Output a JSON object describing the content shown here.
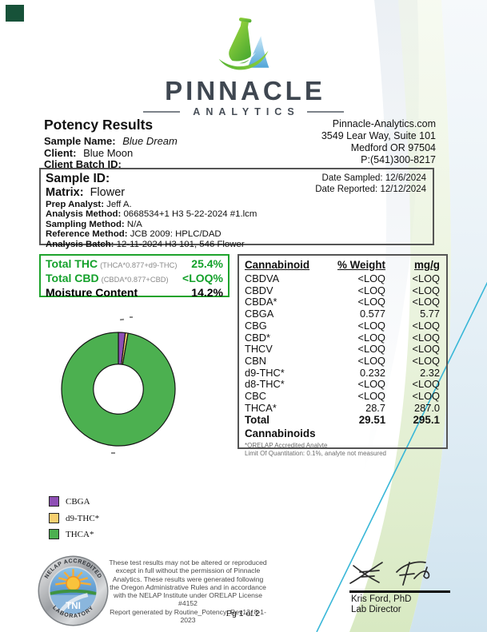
{
  "logo": {
    "brand": "PINNACLE",
    "sub": "ANALYTICS"
  },
  "header": {
    "title": "Potency Results",
    "sample_name_label": "Sample Name:",
    "sample_name": "Blue Dream",
    "client_label": "Client:",
    "client": "Blue Moon",
    "client_batch_label": "Client Batch ID:",
    "client_batch": "",
    "website": "Pinnacle-Analytics.com",
    "address1": "3549 Lear Way, Suite 101",
    "address2": "Medford OR 97504",
    "phone": "P:(541)300-8217"
  },
  "sample_box": {
    "sample_id_label": "Sample ID:",
    "sample_id": "",
    "matrix_label": "Matrix:",
    "matrix": "Flower",
    "fields": [
      {
        "label": "Prep Analyst:",
        "value": "Jeff A."
      },
      {
        "label": "Analysis Method:",
        "value": "0668534+1 H3 5-22-2024 #1.lcm"
      },
      {
        "label": "Sampling Method:",
        "value": "N/A"
      },
      {
        "label": "Reference Method:",
        "value": "JCB 2009: HPLC/DAD"
      },
      {
        "label": "Analysis Batch:",
        "value": "12-11-2024 H3 101, 546 Flower"
      }
    ],
    "date_sampled_label": "Date Sampled:",
    "date_sampled": "12/6/2024",
    "date_reported_label": "Date Reported:",
    "date_reported": "12/12/2024"
  },
  "summary_box": {
    "accent_color": "#14a12b",
    "rows": [
      {
        "label": "Total THC",
        "formula": "(THCA*0.877+d9-THC)",
        "value": "25.4%",
        "color": "green"
      },
      {
        "label": "Total CBD",
        "formula": "(CBDA*0.877+CBD)",
        "value": "<LOQ%",
        "color": "green"
      },
      {
        "label": "Moisture Content",
        "formula": "",
        "value": "14.2%",
        "color": "black"
      }
    ]
  },
  "cannabinoid_table": {
    "headers": [
      "Cannabinoid",
      "% Weight",
      "mg/g"
    ],
    "rows": [
      [
        "CBDVA",
        "<LOQ",
        "<LOQ"
      ],
      [
        "CBDV",
        "<LOQ",
        "<LOQ"
      ],
      [
        "CBDA*",
        "<LOQ",
        "<LOQ"
      ],
      [
        "CBGA",
        "0.577",
        "5.77"
      ],
      [
        "CBG",
        "<LOQ",
        "<LOQ"
      ],
      [
        "CBD*",
        "<LOQ",
        "<LOQ"
      ],
      [
        "THCV",
        "<LOQ",
        "<LOQ"
      ],
      [
        "CBN",
        "<LOQ",
        "<LOQ"
      ],
      [
        "d9-THC*",
        "0.232",
        "2.32"
      ],
      [
        "d8-THC*",
        "<LOQ",
        "<LOQ"
      ],
      [
        "CBC",
        "<LOQ",
        "<LOQ"
      ],
      [
        "THCA*",
        "28.7",
        "287.0"
      ]
    ],
    "total_row": [
      "Total Cannabinoids",
      "29.51",
      "295.1"
    ],
    "footnotes": [
      "*ORELAP Accredited Analyte",
      "Limit Of Quantitation: 0.1%, analyte not measured"
    ]
  },
  "chart_data": {
    "type": "pie",
    "subtype": "donut",
    "labels": [
      "CBGA",
      "d9-THC*",
      "THCA*"
    ],
    "values": [
      0.577,
      0.232,
      28.7
    ],
    "unit": "% weight",
    "colors": [
      "#8e4fb5",
      "#f6cf70",
      "#4cb050"
    ],
    "edge_color": "#151515",
    "start_angle_deg": 90,
    "direction": "clockwise",
    "inner_radius_ratio": 0.44,
    "legend_position": "lower-left"
  },
  "legend": {
    "items": [
      {
        "label": "CBGA",
        "color": "#8e4fb5"
      },
      {
        "label": "d9-THC*",
        "color": "#f6cf70"
      },
      {
        "label": "THCA*",
        "color": "#4cb050"
      }
    ]
  },
  "footer": {
    "seal": {
      "top_text": "NELAP ACCREDITED",
      "bottom_text": "LABORATORY",
      "center_text": "TNI"
    },
    "disclaimer_lines": [
      "These test results may not be altered or reproduced",
      "except in full without the permission of Pinnacle",
      "Analytics. These results were generated following",
      "the Oregon Administrative Rules and in accordance",
      "with the NELAP Institute under ORELAP License #4152",
      "Report generated by Routine_Potency_Rev13_8-1-2023"
    ],
    "page_label": "Pg 1 of 2",
    "signature": {
      "name": "Kris Ford, PhD",
      "title": "Lab Director"
    }
  },
  "decor": {
    "accent_green": "#1ea32c",
    "band_green": "#d8e9c2",
    "band_blue": "#cfe3ef",
    "diagonal_line": "#39b7d8"
  }
}
